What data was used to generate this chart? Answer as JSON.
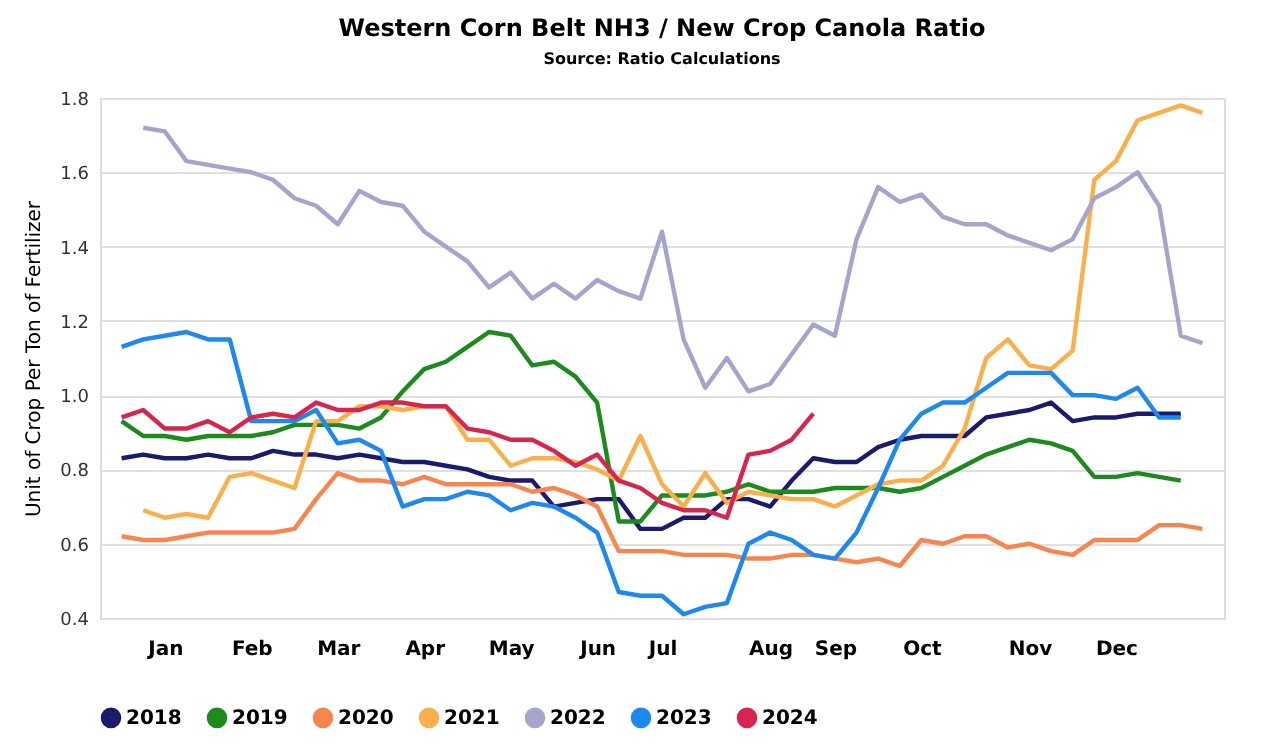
{
  "chart_data": {
    "type": "line",
    "title": "Western Corn Belt NH3 / New Crop Canola Ratio",
    "subtitle": "Source: Ratio Calculations",
    "ylabel": "Unit of Crop Per Ton of Fertilizer",
    "categories": [
      null,
      null,
      "Jan",
      null,
      null,
      null,
      "Feb",
      null,
      null,
      null,
      "Mar",
      null,
      null,
      null,
      "Apr",
      null,
      null,
      null,
      "May",
      null,
      null,
      null,
      "Jun",
      null,
      null,
      "Jul",
      null,
      null,
      null,
      null,
      "Aug",
      null,
      null,
      "Sep",
      null,
      null,
      null,
      "Oct",
      null,
      null,
      null,
      null,
      "Nov",
      null,
      null,
      null,
      "Dec",
      null,
      null,
      null,
      null
    ],
    "ylim": [
      0.4,
      1.8
    ],
    "yticks": [
      0.4,
      0.6,
      0.8,
      {
        "value": 1,
        "label": "1.0"
      },
      1.2,
      1.4,
      1.6,
      1.8
    ],
    "grid": "y",
    "legend": "bottom",
    "series": [
      {
        "name": "2018",
        "color": "#1b1a6b",
        "values": [
          0.83,
          0.84,
          0.83,
          0.83,
          0.84,
          0.83,
          0.83,
          0.85,
          0.84,
          0.84,
          0.83,
          0.84,
          0.83,
          0.82,
          0.82,
          0.81,
          0.8,
          0.78,
          0.77,
          0.77,
          0.7,
          0.71,
          0.72,
          0.72,
          0.64,
          0.64,
          0.67,
          0.67,
          0.72,
          0.72,
          0.7,
          0.77,
          0.83,
          0.82,
          0.82,
          0.86,
          0.88,
          0.89,
          0.89,
          0.89,
          0.94,
          0.95,
          0.96,
          0.98,
          0.93,
          0.94,
          0.94,
          0.95,
          0.95,
          0.95,
          null
        ]
      },
      {
        "name": "2019",
        "color": "#1c8a1c",
        "values": [
          0.93,
          0.89,
          0.89,
          0.88,
          0.89,
          0.89,
          0.89,
          0.9,
          0.92,
          0.92,
          0.92,
          0.91,
          0.94,
          1.01,
          1.07,
          1.09,
          1.13,
          1.17,
          1.16,
          1.08,
          1.09,
          1.05,
          0.98,
          0.66,
          0.66,
          0.73,
          0.73,
          0.73,
          0.74,
          0.76,
          0.74,
          0.74,
          0.74,
          0.75,
          0.75,
          0.75,
          0.74,
          0.75,
          0.78,
          0.81,
          0.84,
          0.86,
          0.88,
          0.87,
          0.85,
          0.78,
          0.78,
          0.79,
          0.78,
          0.77,
          null
        ]
      },
      {
        "name": "2020",
        "color": "#f7854e",
        "values": [
          0.62,
          0.61,
          0.61,
          0.62,
          0.63,
          0.63,
          0.63,
          0.63,
          0.64,
          0.72,
          0.79,
          0.77,
          0.77,
          0.76,
          0.78,
          0.76,
          0.76,
          0.76,
          0.76,
          0.74,
          0.75,
          0.73,
          0.7,
          0.58,
          0.58,
          0.58,
          0.57,
          0.57,
          0.57,
          0.56,
          0.56,
          0.57,
          0.57,
          0.56,
          0.55,
          0.56,
          0.54,
          0.61,
          0.6,
          0.62,
          0.62,
          0.59,
          0.6,
          0.58,
          0.57,
          0.61,
          0.61,
          0.61,
          0.65,
          0.65,
          0.64
        ]
      },
      {
        "name": "2021",
        "color": "#f9b04c",
        "values": [
          null,
          0.69,
          0.67,
          0.68,
          0.67,
          0.78,
          0.79,
          0.77,
          0.75,
          0.93,
          0.93,
          0.97,
          0.97,
          0.96,
          0.97,
          0.97,
          0.88,
          0.88,
          0.81,
          0.83,
          0.83,
          0.82,
          0.8,
          0.77,
          0.89,
          0.76,
          0.7,
          0.79,
          0.71,
          0.74,
          0.73,
          0.72,
          0.72,
          0.7,
          0.73,
          0.76,
          0.77,
          0.77,
          0.81,
          0.91,
          1.1,
          1.15,
          1.08,
          1.07,
          1.12,
          1.58,
          1.63,
          1.74,
          1.76,
          1.78,
          1.76
        ]
      },
      {
        "name": "2022",
        "color": "#a5a5cc",
        "values": [
          null,
          1.72,
          1.71,
          1.63,
          1.62,
          1.61,
          1.6,
          1.58,
          1.53,
          1.51,
          1.46,
          1.55,
          1.52,
          1.51,
          1.44,
          1.4,
          1.36,
          1.29,
          1.33,
          1.26,
          1.3,
          1.26,
          1.31,
          1.28,
          1.26,
          1.44,
          1.15,
          1.02,
          1.1,
          1.01,
          1.03,
          1.11,
          1.19,
          1.16,
          1.42,
          1.56,
          1.52,
          1.54,
          1.48,
          1.46,
          1.46,
          1.43,
          1.41,
          1.39,
          1.42,
          1.53,
          1.56,
          1.6,
          1.51,
          1.16,
          1.14
        ]
      },
      {
        "name": "2023",
        "color": "#1e88ef",
        "values": [
          1.13,
          1.15,
          1.16,
          1.17,
          1.15,
          1.15,
          0.93,
          0.93,
          0.93,
          0.96,
          0.87,
          0.88,
          0.85,
          0.7,
          0.72,
          0.72,
          0.74,
          0.73,
          0.69,
          0.71,
          0.7,
          0.67,
          0.63,
          0.47,
          0.46,
          0.46,
          0.41,
          0.43,
          0.44,
          0.6,
          0.63,
          0.61,
          0.57,
          0.56,
          0.63,
          0.75,
          0.88,
          0.95,
          0.98,
          0.98,
          1.02,
          1.06,
          1.06,
          1.06,
          1.0,
          1.0,
          0.99,
          1.02,
          0.94,
          0.94,
          null
        ]
      },
      {
        "name": "2024",
        "color": "#d6264f",
        "values": [
          0.94,
          0.96,
          0.91,
          0.91,
          0.93,
          0.9,
          0.94,
          0.95,
          0.94,
          0.98,
          0.96,
          0.96,
          0.98,
          0.98,
          0.97,
          0.97,
          0.91,
          0.9,
          0.88,
          0.88,
          0.85,
          0.81,
          0.84,
          0.77,
          0.75,
          0.71,
          0.69,
          0.69,
          0.67,
          0.84,
          0.85,
          0.88,
          0.95,
          null,
          null,
          null,
          null,
          null,
          null,
          null,
          null,
          null,
          null,
          null,
          null,
          null,
          null,
          null,
          null,
          null,
          null
        ]
      }
    ]
  }
}
